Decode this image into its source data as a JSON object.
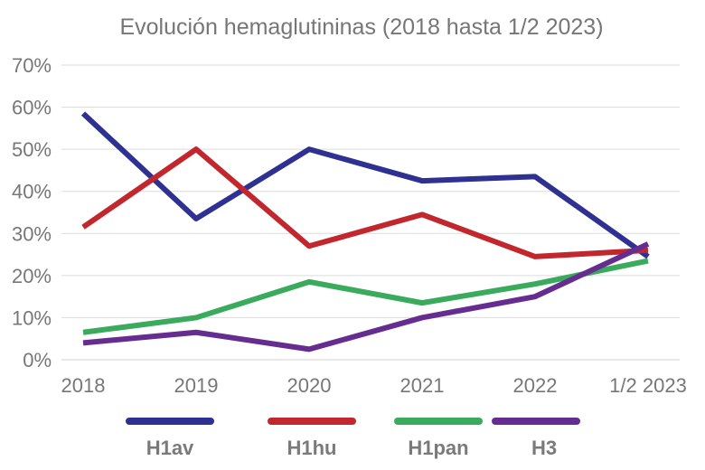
{
  "chart_data": {
    "type": "line",
    "title": "Evolución hemaglutininas (2018 hasta 1/2 2023)",
    "categories": [
      "2018",
      "2019",
      "2020",
      "2021",
      "2022",
      "1/2 2023"
    ],
    "y_ticks": [
      "0%",
      "10%",
      "20%",
      "30%",
      "40%",
      "50%",
      "60%",
      "70%"
    ],
    "ylim": [
      0,
      70
    ],
    "grid": true,
    "legend_position": "bottom",
    "series": [
      {
        "name": "H1av",
        "color": "#2e3192",
        "values": [
          58.5,
          33.5,
          50,
          42.5,
          43.5,
          24.5
        ]
      },
      {
        "name": "H1hu",
        "color": "#c1272d",
        "values": [
          31.5,
          50,
          27,
          34.5,
          24.5,
          26
        ]
      },
      {
        "name": "H1pan",
        "color": "#3aaa5c",
        "values": [
          6.5,
          10,
          18.5,
          13.5,
          18,
          23.5
        ]
      },
      {
        "name": "H3",
        "color": "#662d91",
        "values": [
          4,
          6.5,
          2.5,
          10,
          15,
          27.5
        ]
      }
    ]
  }
}
